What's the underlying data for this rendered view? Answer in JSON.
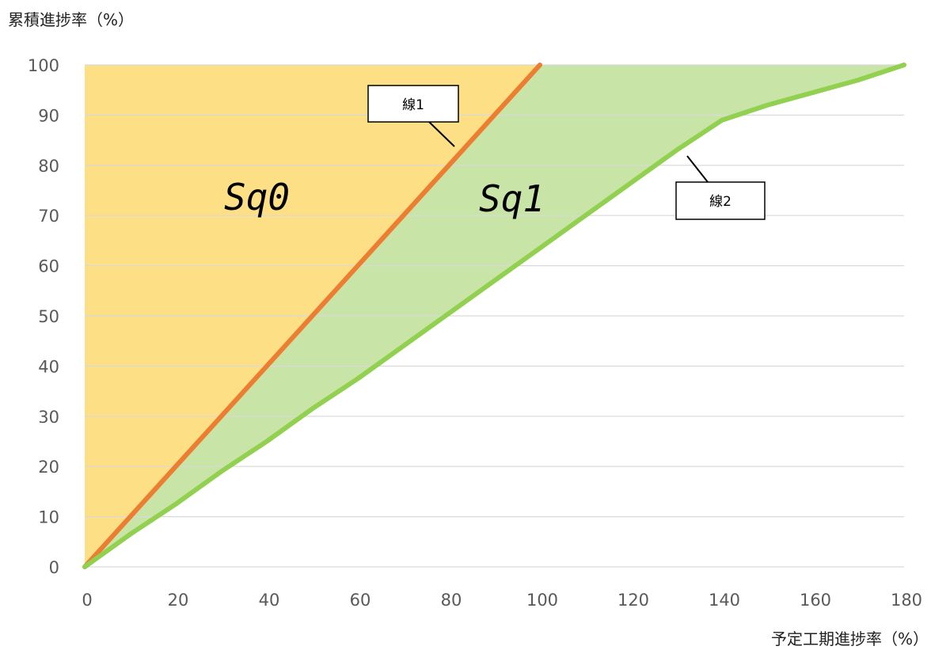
{
  "chart_data": {
    "type": "area",
    "ylabel": "累積進捗率（%）",
    "xlabel": "予定工期進捗率（%）",
    "xlim": [
      0,
      180
    ],
    "ylim": [
      0,
      100
    ],
    "x_ticks": [
      0,
      20,
      40,
      60,
      80,
      100,
      120,
      140,
      160,
      180
    ],
    "y_ticks": [
      0,
      10,
      20,
      30,
      40,
      50,
      60,
      70,
      80,
      90,
      100
    ],
    "grid": "horizontal",
    "series": [
      {
        "name": "線1",
        "color": "#ED7D31",
        "x": [
          0,
          20,
          40,
          60,
          80,
          100
        ],
        "y": [
          0,
          20,
          40,
          60,
          80,
          100
        ]
      },
      {
        "name": "線2",
        "color": "#92D050",
        "x": [
          0,
          10,
          20,
          30,
          40,
          50,
          60,
          70,
          80,
          90,
          100,
          110,
          120,
          130,
          140,
          150,
          160,
          170,
          180
        ],
        "y": [
          0,
          6.5,
          12.5,
          19,
          25,
          31.5,
          37.5,
          44,
          50.5,
          57,
          63.5,
          70,
          76.5,
          83,
          89,
          92,
          94.5,
          97,
          100
        ]
      }
    ],
    "regions": [
      {
        "label": "Sq0",
        "color": "#FDDF85"
      },
      {
        "label": "Sq1",
        "color": "#C8E4A6"
      }
    ],
    "callouts": [
      {
        "text": "線1"
      },
      {
        "text": "線2"
      }
    ]
  }
}
